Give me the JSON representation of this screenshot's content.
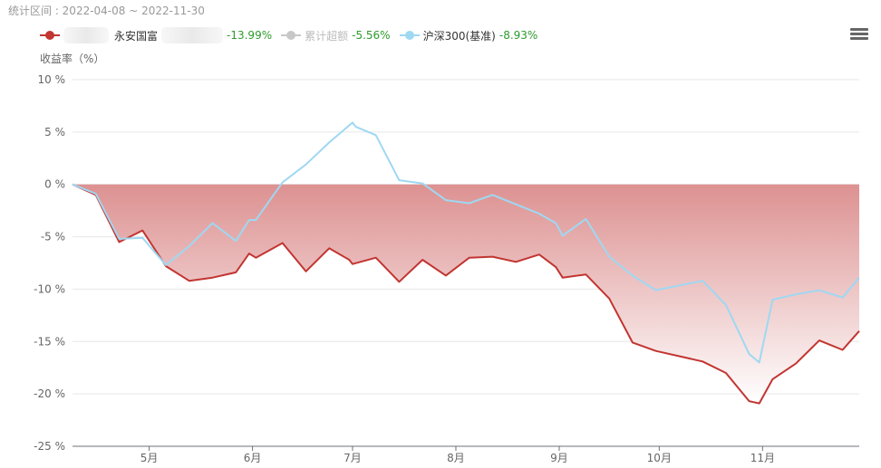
{
  "header": {
    "period_label": "统计区间 : 2022-04-08 ~ 2022-11-30"
  },
  "legend": {
    "fund": {
      "name": "永安国富",
      "value": "-13.99%",
      "color": "#c23531"
    },
    "excess": {
      "name": "累计超额",
      "value": "-5.56%",
      "color": "#c8c8c8"
    },
    "benchmark": {
      "name": "沪深300(基准)",
      "value": "-8.93%",
      "color": "#9fd8f2"
    }
  },
  "toolbar": {
    "menu_icon": "menu-icon"
  },
  "colors": {
    "value_text": "#2d9a2d",
    "area_top": "#dd9191",
    "area_bottom": "#ffffff",
    "grid": "#e6e6e6"
  },
  "chart_data": {
    "type": "line",
    "ylabel": "收益率（%）",
    "ylim": [
      -25,
      10
    ],
    "yticks": [
      10,
      5,
      0,
      -5,
      -10,
      -15,
      -20,
      -25
    ],
    "ytick_labels": [
      "10 %",
      "5 %",
      "0 %",
      "-5 %",
      "-10 %",
      "-15 %",
      "-20 %",
      "-25 %"
    ],
    "xlim": [
      "2022-04-08",
      "2022-11-30"
    ],
    "xticks": [
      {
        "label": "5月",
        "date": "2022-05-01"
      },
      {
        "label": "6月",
        "date": "2022-06-01"
      },
      {
        "label": "7月",
        "date": "2022-07-01"
      },
      {
        "label": "8月",
        "date": "2022-08-01"
      },
      {
        "label": "9月",
        "date": "2022-09-01"
      },
      {
        "label": "10月",
        "date": "2022-10-01"
      },
      {
        "label": "11月",
        "date": "2022-11-01"
      }
    ],
    "grid": true,
    "legend_position": "top-left",
    "series": [
      {
        "name": "永安国富",
        "color": "#c23531",
        "area": true,
        "points": [
          [
            "2022-04-08",
            0
          ],
          [
            "2022-04-15",
            -1.0
          ],
          [
            "2022-04-22",
            -5.5
          ],
          [
            "2022-04-29",
            -4.4
          ],
          [
            "2022-05-06",
            -7.8
          ],
          [
            "2022-05-13",
            -9.2
          ],
          [
            "2022-05-20",
            -8.9
          ],
          [
            "2022-05-27",
            -8.4
          ],
          [
            "2022-05-31",
            -6.6
          ],
          [
            "2022-06-02",
            -7.0
          ],
          [
            "2022-06-10",
            -5.6
          ],
          [
            "2022-06-17",
            -8.3
          ],
          [
            "2022-06-24",
            -6.1
          ],
          [
            "2022-06-30",
            -7.2
          ],
          [
            "2022-07-01",
            -7.6
          ],
          [
            "2022-07-08",
            -7.0
          ],
          [
            "2022-07-15",
            -9.3
          ],
          [
            "2022-07-22",
            -7.2
          ],
          [
            "2022-07-29",
            -8.7
          ],
          [
            "2022-08-05",
            -7.0
          ],
          [
            "2022-08-12",
            -6.9
          ],
          [
            "2022-08-19",
            -7.4
          ],
          [
            "2022-08-26",
            -6.7
          ],
          [
            "2022-08-31",
            -7.9
          ],
          [
            "2022-09-02",
            -8.9
          ],
          [
            "2022-09-09",
            -8.6
          ],
          [
            "2022-09-16",
            -10.9
          ],
          [
            "2022-09-23",
            -15.1
          ],
          [
            "2022-09-30",
            -15.9
          ],
          [
            "2022-10-14",
            -16.9
          ],
          [
            "2022-10-21",
            -18.0
          ],
          [
            "2022-10-28",
            -20.7
          ],
          [
            "2022-10-31",
            -20.9
          ],
          [
            "2022-11-04",
            -18.6
          ],
          [
            "2022-11-11",
            -17.1
          ],
          [
            "2022-11-18",
            -14.9
          ],
          [
            "2022-11-25",
            -15.8
          ],
          [
            "2022-11-30",
            -14.0
          ]
        ]
      },
      {
        "name": "沪深300(基准)",
        "color": "#9fd8f2",
        "area": false,
        "points": [
          [
            "2022-04-08",
            0
          ],
          [
            "2022-04-15",
            -0.9
          ],
          [
            "2022-04-22",
            -5.2
          ],
          [
            "2022-04-29",
            -5.1
          ],
          [
            "2022-05-06",
            -7.7
          ],
          [
            "2022-05-13",
            -5.9
          ],
          [
            "2022-05-20",
            -3.7
          ],
          [
            "2022-05-27",
            -5.4
          ],
          [
            "2022-05-31",
            -3.4
          ],
          [
            "2022-06-02",
            -3.4
          ],
          [
            "2022-06-10",
            0.2
          ],
          [
            "2022-06-17",
            1.9
          ],
          [
            "2022-06-24",
            4.0
          ],
          [
            "2022-07-01",
            5.9
          ],
          [
            "2022-07-02",
            5.5
          ],
          [
            "2022-07-08",
            4.7
          ],
          [
            "2022-07-15",
            0.4
          ],
          [
            "2022-07-22",
            0.1
          ],
          [
            "2022-07-29",
            -1.5
          ],
          [
            "2022-08-05",
            -1.8
          ],
          [
            "2022-08-12",
            -1.0
          ],
          [
            "2022-08-19",
            -1.9
          ],
          [
            "2022-08-26",
            -2.8
          ],
          [
            "2022-08-31",
            -3.7
          ],
          [
            "2022-09-02",
            -4.9
          ],
          [
            "2022-09-09",
            -3.3
          ],
          [
            "2022-09-16",
            -6.9
          ],
          [
            "2022-09-23",
            -8.7
          ],
          [
            "2022-09-30",
            -10.1
          ],
          [
            "2022-10-14",
            -9.2
          ],
          [
            "2022-10-21",
            -11.5
          ],
          [
            "2022-10-28",
            -16.2
          ],
          [
            "2022-10-31",
            -17.0
          ],
          [
            "2022-11-04",
            -11.0
          ],
          [
            "2022-11-11",
            -10.5
          ],
          [
            "2022-11-18",
            -10.1
          ],
          [
            "2022-11-25",
            -10.8
          ],
          [
            "2022-11-30",
            -8.9
          ]
        ]
      }
    ]
  }
}
